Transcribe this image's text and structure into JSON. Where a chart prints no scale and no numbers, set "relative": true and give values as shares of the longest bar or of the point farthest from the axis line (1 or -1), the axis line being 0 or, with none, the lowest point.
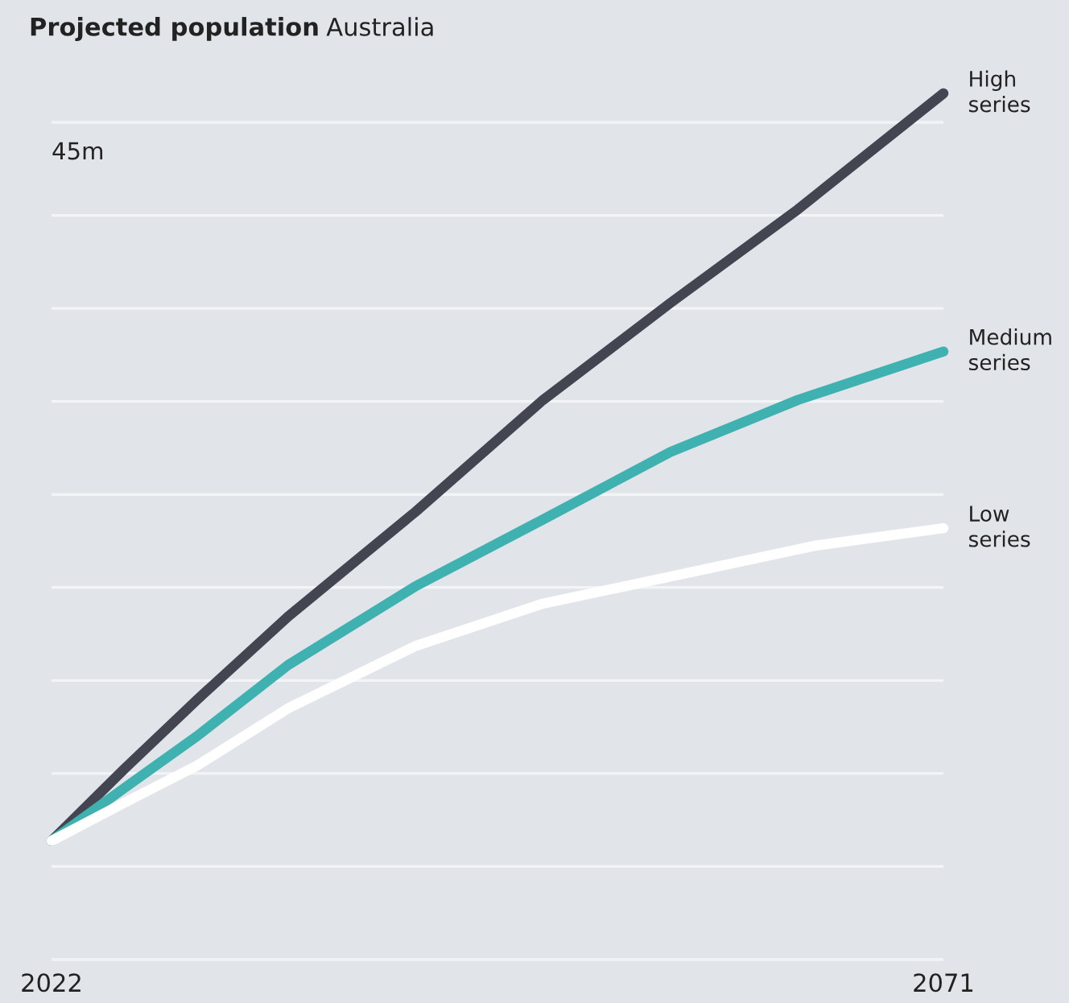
{
  "chart_data": {
    "type": "line",
    "title": "Projected population",
    "subtitle": "Australia",
    "relative": true,
    "x": [
      2022,
      2026,
      2030,
      2035,
      2042,
      2049,
      2056,
      2063,
      2071
    ],
    "xlim": [
      2022,
      2071
    ],
    "xticks": [
      2022,
      2071
    ],
    "series": [
      {
        "name": "High series",
        "color": "#434651",
        "values": [
          0.137,
          0.22,
          0.3,
          0.396,
          0.517,
          0.646,
          0.758,
          0.866,
          1
        ]
      },
      {
        "name": "Medium series",
        "color": "#3fb1b1",
        "values": [
          0.137,
          0.198,
          0.258,
          0.34,
          0.431,
          0.508,
          0.586,
          0.646,
          0.702
        ]
      },
      {
        "name": "Low series",
        "color": "#ffffff",
        "x": [
          2022,
          2026,
          2030,
          2035,
          2042,
          2049,
          2058,
          2064,
          2071
        ],
        "values": [
          0.137,
          0.181,
          0.224,
          0.29,
          0.362,
          0.411,
          0.451,
          0.478,
          0.498
        ]
      }
    ],
    "annotations": [
      "45m"
    ],
    "grid": true,
    "marker": "none",
    "line_style": "solid"
  }
}
